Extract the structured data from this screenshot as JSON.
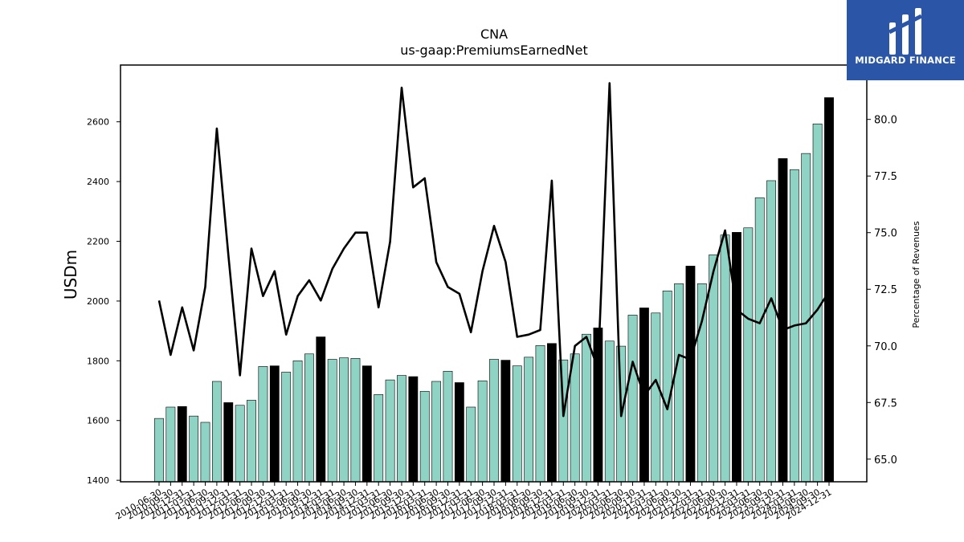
{
  "chart_data": {
    "type": "bar",
    "title": "CNA",
    "subtitle": "us-gaap:PremiumsEarnedNet",
    "ylabel": "USDm",
    "y2label": "Percentage of Revenues",
    "ylim": [
      1395,
      2790
    ],
    "y2lim": [
      64.0,
      82.4
    ],
    "yticks": [
      1400,
      1600,
      1800,
      2000,
      2200,
      2400,
      2600
    ],
    "y2ticks": [
      65.0,
      67.5,
      70.0,
      72.5,
      75.0,
      77.5,
      80.0
    ],
    "categories": [
      "2010-06-30",
      "2010-09-30",
      "2010-12-31",
      "2011-03-31",
      "2011-06-30",
      "2011-09-30",
      "2011-12-31",
      "2012-03-31",
      "2012-06-30",
      "2012-09-30",
      "2012-12-31",
      "2013-03-31",
      "2013-06-30",
      "2013-09-30",
      "2013-12-31",
      "2014-03-31",
      "2014-06-30",
      "2014-09-30",
      "2014-12-31",
      "2015-03-31",
      "2015-06-30",
      "2015-09-30",
      "2015-12-31",
      "2016-03-31",
      "2016-06-30",
      "2016-09-30",
      "2016-12-31",
      "2017-03-31",
      "2017-06-30",
      "2017-09-30",
      "2017-12-31",
      "2018-03-31",
      "2018-06-30",
      "2018-09-30",
      "2018-12-31",
      "2019-03-31",
      "2019-06-30",
      "2019-09-30",
      "2019-12-31",
      "2020-03-31",
      "2020-06-30",
      "2020-09-30",
      "2020-12-31",
      "2021-03-31",
      "2021-06-30",
      "2021-09-30",
      "2021-12-31",
      "2022-03-31",
      "2022-06-30",
      "2022-09-30",
      "2022-12-31",
      "2023-03-31",
      "2023-06-30",
      "2023-09-30",
      "2023-12-31",
      "2024-03-31",
      "2024-06-30",
      "2024-09-30",
      "2024-12-31"
    ],
    "series": [
      {
        "type": "bar",
        "values": [
          1607,
          1645,
          1647,
          1615,
          1594,
          1731,
          1660,
          1651,
          1668,
          1781,
          1783,
          1762,
          1800,
          1823,
          1880,
          1805,
          1810,
          1808,
          1783,
          1687,
          1736,
          1751,
          1747,
          1698,
          1731,
          1765,
          1727,
          1645,
          1733,
          1805,
          1802,
          1783,
          1812,
          1851,
          1858,
          1803,
          1823,
          1889,
          1910,
          1866,
          1849,
          1953,
          1977,
          1960,
          2034,
          2058,
          2117,
          2058,
          2155,
          2221,
          2230,
          2245,
          2346,
          2403,
          2477,
          2440,
          2494,
          2593,
          2681
        ],
        "annual": [
          false,
          false,
          true,
          false,
          false,
          false,
          true,
          false,
          false,
          false,
          true,
          false,
          false,
          false,
          true,
          false,
          false,
          false,
          true,
          false,
          false,
          false,
          true,
          false,
          false,
          false,
          true,
          false,
          false,
          false,
          true,
          false,
          false,
          false,
          true,
          false,
          false,
          false,
          true,
          false,
          false,
          false,
          true,
          false,
          false,
          false,
          true,
          false,
          false,
          false,
          true,
          false,
          false,
          false,
          true,
          false,
          false,
          false,
          true
        ],
        "color_quarterly": "#8fd3c4",
        "color_annual": "#000000"
      },
      {
        "type": "line",
        "axis": "right",
        "values": [
          72.0,
          69.6,
          71.7,
          69.8,
          72.6,
          79.6,
          74.0,
          68.7,
          74.3,
          72.2,
          73.3,
          70.5,
          72.2,
          72.9,
          72.0,
          73.4,
          74.3,
          75.0,
          75.0,
          71.7,
          74.6,
          81.4,
          77.0,
          77.4,
          73.7,
          72.6,
          72.3,
          70.6,
          73.3,
          75.3,
          73.7,
          70.4,
          70.5,
          70.7,
          77.3,
          66.9,
          70.0,
          70.4,
          69.0,
          81.6,
          66.9,
          69.3,
          67.8,
          68.5,
          67.2,
          69.6,
          69.4,
          71.1,
          73.3,
          75.1,
          71.6,
          71.2,
          71.0,
          72.1,
          70.7,
          70.9,
          71.0,
          71.6,
          72.4
        ],
        "color": "#000000"
      }
    ],
    "grid": false
  },
  "logo": {
    "text": "MIDGARD FINANCE",
    "bg_color": "#2b56a8"
  }
}
